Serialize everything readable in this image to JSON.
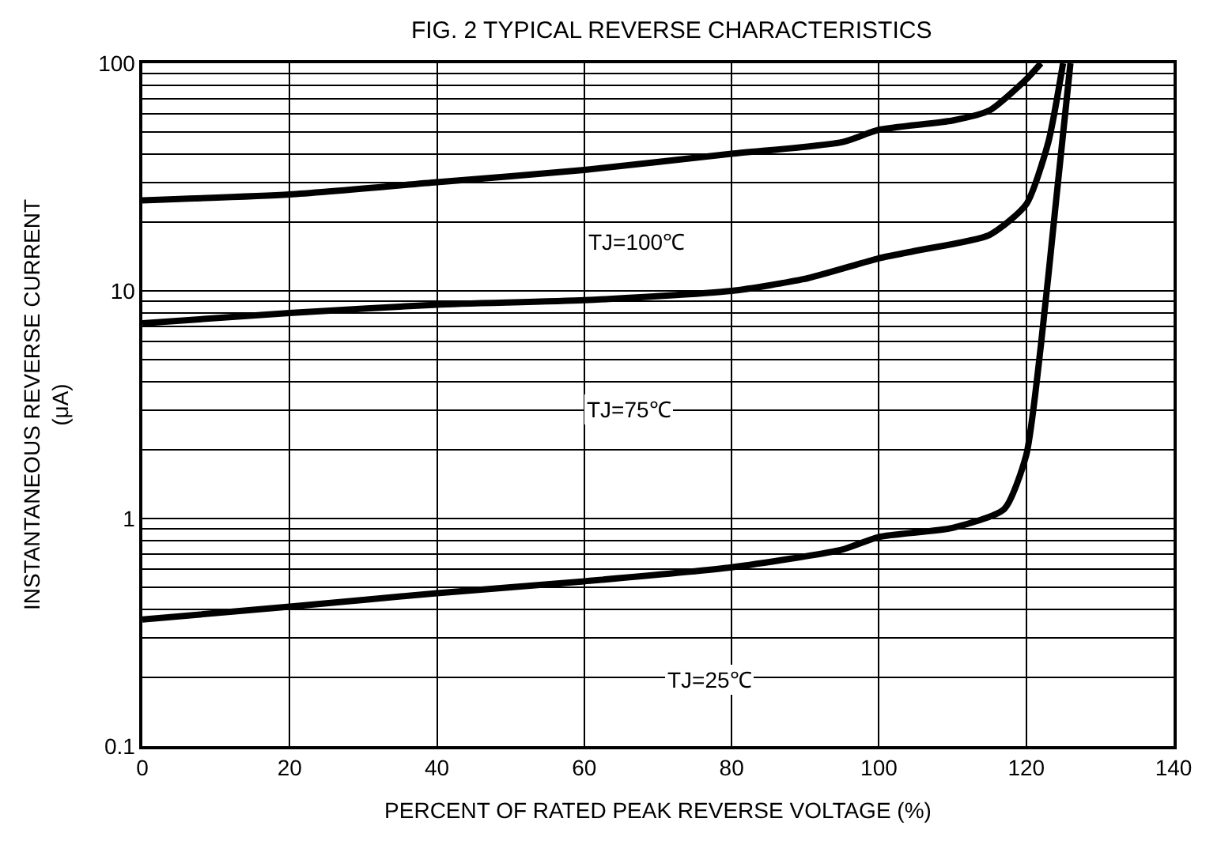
{
  "chart_data": {
    "type": "line",
    "title": "FIG. 2 TYPICAL REVERSE CHARACTERISTICS",
    "xlabel": "PERCENT OF RATED PEAK REVERSE VOLTAGE (%)",
    "ylabel": "INSTANTANEOUS REVERSE CURRENT (μA)",
    "log": "y",
    "grid": true,
    "marker": "none",
    "line_style": "solid",
    "xlim": [
      0,
      140
    ],
    "xticks": [
      0,
      20,
      40,
      60,
      80,
      100,
      120,
      140
    ],
    "ylim": [
      0.1,
      100
    ],
    "yticks": [
      {
        "value": 0.1,
        "label": "0.1"
      },
      1,
      10,
      100
    ],
    "series": [
      {
        "color": "#000000",
        "x": [
          0,
          20,
          40,
          60,
          80,
          95,
          100,
          110,
          115,
          120,
          122
        ],
        "values": [
          25,
          26.5,
          30,
          34,
          40,
          45,
          51,
          56,
          62,
          85,
          100
        ]
      },
      {
        "color": "#000000",
        "x": [
          0,
          20,
          40,
          60,
          80,
          90,
          100,
          105,
          115,
          120,
          123,
          125
        ],
        "values": [
          7.2,
          8.0,
          8.7,
          9.1,
          10,
          11.3,
          13.9,
          15,
          17.6,
          24,
          45,
          100
        ]
      },
      {
        "color": "#000000",
        "x": [
          0,
          20,
          40,
          60,
          80,
          95,
          100,
          110,
          117,
          120,
          122,
          124,
          126
        ],
        "values": [
          0.36,
          0.41,
          0.47,
          0.53,
          0.61,
          0.73,
          0.83,
          0.91,
          1.1,
          1.9,
          5.8,
          24,
          100
        ]
      }
    ],
    "annotations": [
      "TJ=100℃",
      "TJ=75℃",
      "TJ=25℃"
    ]
  }
}
